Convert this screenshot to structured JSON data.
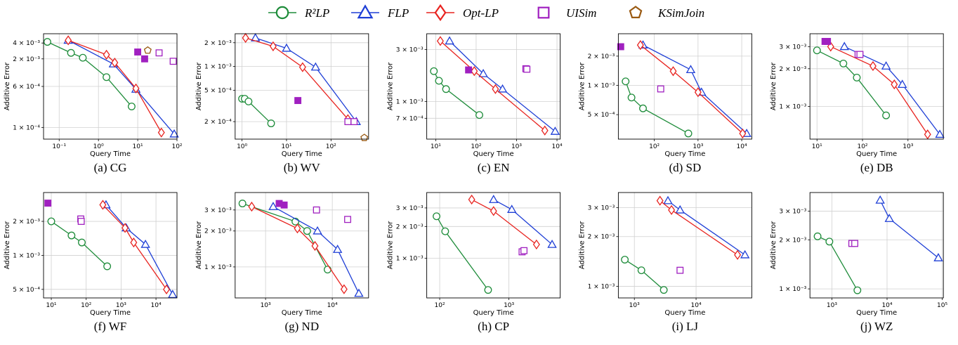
{
  "legend": [
    {
      "key": "r2lp",
      "name": "R²LP",
      "color": "#1e8c3a",
      "marker": "circle-icon"
    },
    {
      "key": "flp",
      "name": "FLP",
      "color": "#1f3fd6",
      "marker": "triangle-icon"
    },
    {
      "key": "optlp",
      "name": "Opt-LP",
      "color": "#e8231f",
      "marker": "diamond-icon"
    },
    {
      "key": "uisim",
      "name": "UISim",
      "color": "#a020c0",
      "marker": "square-icon"
    },
    {
      "key": "ksimjoin",
      "name": "KSimJoin",
      "color": "#9a5a12",
      "marker": "pentagon-icon"
    }
  ],
  "chart_data": [
    {
      "type": "scatter",
      "caption": "(a) CG",
      "xlabel": "Query Time",
      "ylabel": "Additive Error",
      "xscale": "log",
      "yscale": "log",
      "xlim": [
        0.04,
        100
      ],
      "ylim": [
        6e-05,
        0.006
      ],
      "xticks": [
        {
          "v": 0.1,
          "t": "10⁻¹"
        },
        {
          "v": 1,
          "t": "10⁰"
        },
        {
          "v": 10,
          "t": "10¹"
        },
        {
          "v": 100,
          "t": "10²"
        }
      ],
      "yticks": [
        {
          "v": 0.0001,
          "t": "1 × 10⁻⁴"
        },
        {
          "v": 0.0006,
          "t": "6 × 10⁻⁴"
        },
        {
          "v": 0.002,
          "t": "2 × 10⁻³"
        },
        {
          "v": 0.004,
          "t": "4 × 10⁻³"
        }
      ],
      "series": [
        {
          "key": "r2lp",
          "x": [
            0.05,
            0.2,
            0.4,
            1.6,
            7
          ],
          "y": [
            0.0042,
            0.0026,
            0.0021,
            0.0009,
            0.00025
          ]
        },
        {
          "key": "flp",
          "x": [
            0.17,
            2.4,
            9,
            85
          ],
          "y": [
            0.0045,
            0.0016,
            0.00053,
            7.5e-05
          ]
        },
        {
          "key": "optlp",
          "x": [
            0.17,
            1.6,
            2.6,
            9,
            40
          ],
          "y": [
            0.0045,
            0.0024,
            0.0017,
            0.00055,
            8e-05
          ]
        },
        {
          "key": "uisim",
          "x": [
            10,
            15,
            35,
            80
          ],
          "y": [
            0.0027,
            0.002,
            0.0026,
            0.0018
          ],
          "filled": [
            true,
            true,
            false,
            false
          ]
        },
        {
          "key": "ksimjoin",
          "x": [
            18
          ],
          "y": [
            0.0029
          ]
        }
      ]
    },
    {
      "type": "scatter",
      "caption": "(b) WV",
      "xlabel": "Query Time",
      "ylabel": "Additive Error",
      "xscale": "log",
      "yscale": "log",
      "xlim": [
        0.7,
        700
      ],
      "ylim": [
        0.00012,
        0.0026
      ],
      "xticks": [
        {
          "v": 1,
          "t": "10⁰"
        },
        {
          "v": 10,
          "t": "10¹"
        },
        {
          "v": 100,
          "t": "10²"
        }
      ],
      "yticks": [
        {
          "v": 0.0002,
          "t": "2 × 10⁻⁴"
        },
        {
          "v": 0.0005,
          "t": "5 × 10⁻⁴"
        },
        {
          "v": 0.001,
          "t": "1 × 10⁻³"
        },
        {
          "v": 0.002,
          "t": "2 × 10⁻³"
        }
      ],
      "series": [
        {
          "key": "r2lp",
          "x": [
            1,
            1.15,
            1.4,
            4.5
          ],
          "y": [
            0.00039,
            0.00039,
            0.00036,
            0.00019
          ]
        },
        {
          "key": "flp",
          "x": [
            2,
            10,
            45,
            370
          ],
          "y": [
            0.0023,
            0.0017,
            0.00098,
            0.0002
          ]
        },
        {
          "key": "optlp",
          "x": [
            1.2,
            5,
            23,
            240
          ],
          "y": [
            0.0023,
            0.0018,
            0.00098,
            0.000215
          ]
        },
        {
          "key": "uisim",
          "x": [
            18,
            240,
            330
          ],
          "y": [
            0.00037,
            0.0002,
            0.0002
          ],
          "filled": [
            true,
            false,
            false
          ]
        },
        {
          "key": "ksimjoin",
          "x": [
            560
          ],
          "y": [
            0.000125
          ]
        }
      ]
    },
    {
      "type": "scatter",
      "caption": "(c) EN",
      "xlabel": "Query Time",
      "ylabel": "Additive Error",
      "xscale": "log",
      "yscale": "log",
      "xlim": [
        6,
        12000
      ],
      "ylim": [
        0.00045,
        0.0042
      ],
      "xticks": [
        {
          "v": 10,
          "t": "10¹"
        },
        {
          "v": 100,
          "t": "10²"
        },
        {
          "v": 1000,
          "t": "10³"
        },
        {
          "v": 10000,
          "t": "10⁴"
        }
      ],
      "yticks": [
        {
          "v": 0.0007,
          "t": "7 × 10⁻⁴"
        },
        {
          "v": 0.001,
          "t": "1 × 10⁻³"
        },
        {
          "v": 0.003,
          "t": "3 × 10⁻³"
        }
      ],
      "series": [
        {
          "key": "r2lp",
          "x": [
            9,
            12,
            18,
            120
          ],
          "y": [
            0.0019,
            0.00155,
            0.0013,
            0.00075
          ]
        },
        {
          "key": "flp",
          "x": [
            22,
            150,
            450,
            9000
          ],
          "y": [
            0.0036,
            0.0018,
            0.0013,
            0.00053
          ]
        },
        {
          "key": "optlp",
          "x": [
            13,
            90,
            300,
            5000
          ],
          "y": [
            0.0036,
            0.0019,
            0.0013,
            0.00054
          ]
        },
        {
          "key": "uisim",
          "x": [
            65,
            1700,
            1800
          ],
          "y": [
            0.00195,
            0.002,
            0.00198
          ],
          "filled": [
            true,
            false,
            false
          ]
        }
      ]
    },
    {
      "type": "scatter",
      "caption": "(d) SD",
      "xlabel": "Query Time",
      "ylabel": "Additive Error",
      "xscale": "log",
      "yscale": "log",
      "xlim": [
        15,
        17000
      ],
      "ylim": [
        0.00028,
        0.0034
      ],
      "xticks": [
        {
          "v": 100,
          "t": "10²"
        },
        {
          "v": 1000,
          "t": "10³"
        },
        {
          "v": 10000,
          "t": "10⁴"
        }
      ],
      "yticks": [
        {
          "v": 0.0005,
          "t": "5 × 10⁻⁴"
        },
        {
          "v": 0.001,
          "t": "1 × 10⁻³"
        },
        {
          "v": 0.002,
          "t": "2 × 10⁻³"
        }
      ],
      "series": [
        {
          "key": "r2lp",
          "x": [
            22,
            30,
            55,
            600
          ],
          "y": [
            0.0011,
            0.00075,
            0.00058,
            0.00032
          ]
        },
        {
          "key": "flp",
          "x": [
            55,
            680,
            1200,
            13000
          ],
          "y": [
            0.0026,
            0.00145,
            0.00085,
            0.00032
          ]
        },
        {
          "key": "optlp",
          "x": [
            48,
            270,
            1000,
            10500
          ],
          "y": [
            0.0026,
            0.0014,
            0.00085,
            0.00032
          ]
        },
        {
          "key": "uisim",
          "x": [
            17,
            140
          ],
          "y": [
            0.0025,
            0.00092
          ],
          "filled": [
            true,
            false
          ]
        }
      ]
    },
    {
      "type": "scatter",
      "caption": "(e) DB",
      "xlabel": "Query Time",
      "ylabel": "Additive Error",
      "xscale": "log",
      "yscale": "log",
      "xlim": [
        7,
        6000
      ],
      "ylim": [
        0.00055,
        0.0038
      ],
      "xticks": [
        {
          "v": 10,
          "t": "10¹"
        },
        {
          "v": 100,
          "t": "10²"
        },
        {
          "v": 1000,
          "t": "10³"
        }
      ],
      "yticks": [
        {
          "v": 0.001,
          "t": "1 × 10⁻³"
        },
        {
          "v": 0.002,
          "t": "2 × 10⁻³"
        },
        {
          "v": 0.003,
          "t": "3 × 10⁻³"
        }
      ],
      "series": [
        {
          "key": "r2lp",
          "x": [
            10,
            38,
            75,
            330
          ],
          "y": [
            0.0028,
            0.0022,
            0.0017,
            0.00085
          ]
        },
        {
          "key": "flp",
          "x": [
            40,
            330,
            750,
            5000
          ],
          "y": [
            0.003,
            0.0021,
            0.0015,
            0.0006
          ]
        },
        {
          "key": "optlp",
          "x": [
            20,
            170,
            500,
            2700
          ],
          "y": [
            0.003,
            0.0021,
            0.0015,
            0.0006
          ]
        },
        {
          "key": "uisim",
          "x": [
            15,
            17,
            80,
            88
          ],
          "y": [
            0.0033,
            0.0033,
            0.0026,
            0.0026
          ],
          "filled": [
            true,
            true,
            false,
            false
          ]
        }
      ]
    },
    {
      "type": "scatter",
      "caption": "(f) WF",
      "xlabel": "Query Time",
      "ylabel": "Additive Error",
      "xscale": "log",
      "yscale": "log",
      "xlim": [
        6,
        40000
      ],
      "ylim": [
        0.00042,
        0.0036
      ],
      "xticks": [
        {
          "v": 10,
          "t": "10¹"
        },
        {
          "v": 100,
          "t": "10²"
        },
        {
          "v": 1000,
          "t": "10³"
        },
        {
          "v": 10000,
          "t": "10⁴"
        }
      ],
      "yticks": [
        {
          "v": 0.0005,
          "t": "5 × 10⁻⁴"
        },
        {
          "v": 0.001,
          "t": "1 × 10⁻³"
        },
        {
          "v": 0.002,
          "t": "2 × 10⁻³"
        }
      ],
      "series": [
        {
          "key": "r2lp",
          "x": [
            10,
            38,
            75,
            400
          ],
          "y": [
            0.002,
            0.0015,
            0.0013,
            0.0008
          ]
        },
        {
          "key": "flp",
          "x": [
            370,
            1400,
            5000,
            30000
          ],
          "y": [
            0.0028,
            0.00175,
            0.00125,
            0.00045
          ]
        },
        {
          "key": "optlp",
          "x": [
            300,
            1300,
            2300,
            20000
          ],
          "y": [
            0.0028,
            0.00175,
            0.0013,
            0.0005
          ]
        },
        {
          "key": "uisim",
          "x": [
            8,
            70,
            72
          ],
          "y": [
            0.0029,
            0.0021,
            0.002
          ],
          "filled": [
            true,
            false,
            false
          ]
        }
      ]
    },
    {
      "type": "scatter",
      "caption": "(g) ND",
      "xlabel": "Query Time",
      "ylabel": "Additive Error",
      "xscale": "log",
      "yscale": "log",
      "xlim": [
        350,
        35000
      ],
      "ylim": [
        0.00055,
        0.0042
      ],
      "xticks": [
        {
          "v": 1000,
          "t": "10³"
        },
        {
          "v": 10000,
          "t": "10⁴"
        }
      ],
      "yticks": [
        {
          "v": 0.001,
          "t": "1 × 10⁻³"
        },
        {
          "v": 0.002,
          "t": "2 × 10⁻³"
        },
        {
          "v": 0.003,
          "t": "3 × 10⁻³"
        }
      ],
      "series": [
        {
          "key": "r2lp",
          "x": [
            450,
            2800,
            4200,
            8500
          ],
          "y": [
            0.0034,
            0.0024,
            0.002,
            0.00095
          ]
        },
        {
          "key": "flp",
          "x": [
            1300,
            6000,
            12000,
            25000
          ],
          "y": [
            0.0032,
            0.002,
            0.0014,
            0.0006
          ]
        },
        {
          "key": "optlp",
          "x": [
            620,
            3000,
            5500,
            15000
          ],
          "y": [
            0.0032,
            0.0021,
            0.0015,
            0.00065
          ]
        },
        {
          "key": "uisim",
          "x": [
            1600,
            1900,
            5800,
            17000
          ],
          "y": [
            0.0034,
            0.0033,
            0.003,
            0.0025
          ],
          "filled": [
            true,
            true,
            false,
            false
          ]
        }
      ]
    },
    {
      "type": "scatter",
      "caption": "(h) CP",
      "xlabel": "Query Time",
      "ylabel": "Additive Error",
      "xscale": "log",
      "yscale": "log",
      "xlim": [
        65,
        5500
      ],
      "ylim": [
        0.00042,
        0.0042
      ],
      "xticks": [
        {
          "v": 100,
          "t": "10²"
        },
        {
          "v": 1000,
          "t": "10³"
        }
      ],
      "yticks": [
        {
          "v": 0.001,
          "t": "1 × 10⁻³"
        },
        {
          "v": 0.002,
          "t": "2 × 10⁻³"
        },
        {
          "v": 0.003,
          "t": "3 × 10⁻³"
        }
      ],
      "series": [
        {
          "key": "r2lp",
          "x": [
            90,
            120,
            500
          ],
          "y": [
            0.0025,
            0.0018,
            0.0005
          ]
        },
        {
          "key": "flp",
          "x": [
            600,
            1100,
            4200
          ],
          "y": [
            0.0036,
            0.0029,
            0.00135
          ]
        },
        {
          "key": "optlp",
          "x": [
            290,
            600,
            2500
          ],
          "y": [
            0.0036,
            0.0028,
            0.00135
          ]
        },
        {
          "key": "uisim",
          "x": [
            1550,
            1650
          ],
          "y": [
            0.00115,
            0.00118
          ],
          "filled": [
            false,
            false
          ]
        }
      ]
    },
    {
      "type": "scatter",
      "caption": "(i) LJ",
      "xlabel": "Query Time",
      "ylabel": "Additive Error",
      "xscale": "log",
      "yscale": "log",
      "xlim": [
        550,
        80000
      ],
      "ylim": [
        0.00085,
        0.0037
      ],
      "xticks": [
        {
          "v": 1000,
          "t": "10³"
        },
        {
          "v": 10000,
          "t": "10⁴"
        }
      ],
      "yticks": [
        {
          "v": 0.001,
          "t": "1 × 10⁻³"
        },
        {
          "v": 0.002,
          "t": "2 × 10⁻³"
        },
        {
          "v": 0.003,
          "t": "3 × 10⁻³"
        }
      ],
      "series": [
        {
          "key": "r2lp",
          "x": [
            700,
            1300,
            3000
          ],
          "y": [
            0.00145,
            0.00125,
            0.00095
          ]
        },
        {
          "key": "flp",
          "x": [
            3500,
            5500,
            62000
          ],
          "y": [
            0.0033,
            0.0029,
            0.00155
          ]
        },
        {
          "key": "optlp",
          "x": [
            2600,
            4000,
            47000
          ],
          "y": [
            0.0033,
            0.0029,
            0.00155
          ]
        },
        {
          "key": "uisim",
          "x": [
            5500
          ],
          "y": [
            0.00125
          ],
          "filled": [
            false
          ]
        }
      ]
    },
    {
      "type": "scatter",
      "caption": "(j) WZ",
      "xlabel": "Query Time",
      "ylabel": "Additive Error",
      "xscale": "log",
      "yscale": "log",
      "xlim": [
        400,
        105000
      ],
      "ylim": [
        0.00088,
        0.0039
      ],
      "xticks": [
        {
          "v": 1000,
          "t": "10³"
        },
        {
          "v": 10000,
          "t": "10⁴"
        },
        {
          "v": 100000,
          "t": "10⁵"
        }
      ],
      "yticks": [
        {
          "v": 0.001,
          "t": "1 × 10⁻³"
        },
        {
          "v": 0.002,
          "t": "2 × 10⁻³"
        },
        {
          "v": 0.003,
          "t": "3 × 10⁻³"
        }
      ],
      "series": [
        {
          "key": "r2lp",
          "x": [
            550,
            900,
            2900
          ],
          "y": [
            0.0021,
            0.00195,
            0.00098
          ]
        },
        {
          "key": "flp",
          "x": [
            7500,
            11000,
            85000
          ],
          "y": [
            0.0035,
            0.0027,
            0.00155
          ]
        },
        {
          "key": "uisim",
          "x": [
            2300,
            2600
          ],
          "y": [
            0.0019,
            0.0019
          ],
          "filled": [
            false,
            false
          ]
        }
      ]
    }
  ]
}
